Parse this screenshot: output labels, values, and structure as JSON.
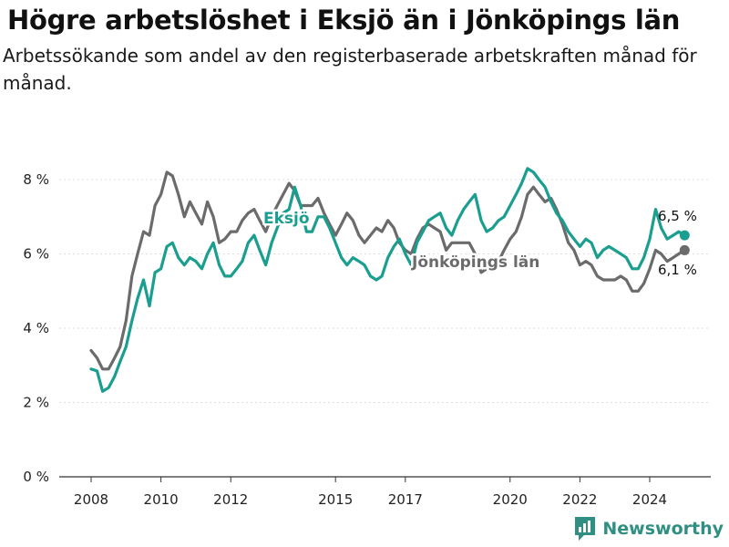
{
  "title": "Högre arbetslöshet i Eksjö än i Jönköpings län",
  "subtitle": "Arbetssökande som andel av den registerbaserade arbetskraften månad för månad.",
  "brand": "Newsworthy",
  "colors": {
    "eksjo": "#1a9e8f",
    "jonkoping": "#6b6b6b",
    "grid": "#dddddd",
    "axis": "#333333",
    "brand": "#2f8f83"
  },
  "chart_data": {
    "type": "line",
    "title": "Högre arbetslöshet i Eksjö än i Jönköpings län",
    "subtitle": "Arbetssökande som andel av den registerbaserade arbetskraften månad för månad.",
    "xlabel": "",
    "ylabel": "",
    "ylim": [
      0,
      9
    ],
    "xlim": [
      2007.6,
      2025.8
    ],
    "yticks": [
      0,
      2,
      4,
      6,
      8
    ],
    "ytick_labels": [
      "0 %",
      "2 %",
      "4 %",
      "6 %",
      "8 %"
    ],
    "xticks": [
      2008,
      2010,
      2012,
      2015,
      2017,
      2020,
      2022,
      2024
    ],
    "xtick_labels": [
      "2008",
      "2010",
      "2012",
      "2015",
      "2017",
      "2020",
      "2022",
      "2024"
    ],
    "grid": true,
    "series": [
      {
        "name": "Eksjö",
        "color": "#1a9e8f",
        "end_label": "6,5 %",
        "points": [
          [
            2008.0,
            2.9
          ],
          [
            2008.17,
            2.85
          ],
          [
            2008.33,
            2.3
          ],
          [
            2008.5,
            2.4
          ],
          [
            2008.67,
            2.7
          ],
          [
            2008.83,
            3.1
          ],
          [
            2009.0,
            3.5
          ],
          [
            2009.17,
            4.2
          ],
          [
            2009.33,
            4.8
          ],
          [
            2009.5,
            5.3
          ],
          [
            2009.67,
            4.6
          ],
          [
            2009.83,
            5.5
          ],
          [
            2010.0,
            5.6
          ],
          [
            2010.17,
            6.2
          ],
          [
            2010.33,
            6.3
          ],
          [
            2010.5,
            5.9
          ],
          [
            2010.67,
            5.7
          ],
          [
            2010.83,
            5.9
          ],
          [
            2011.0,
            5.8
          ],
          [
            2011.17,
            5.6
          ],
          [
            2011.33,
            6.0
          ],
          [
            2011.5,
            6.3
          ],
          [
            2011.67,
            5.7
          ],
          [
            2011.83,
            5.4
          ],
          [
            2012.0,
            5.4
          ],
          [
            2012.17,
            5.6
          ],
          [
            2012.33,
            5.8
          ],
          [
            2012.5,
            6.3
          ],
          [
            2012.67,
            6.5
          ],
          [
            2012.83,
            6.1
          ],
          [
            2013.0,
            5.7
          ],
          [
            2013.17,
            6.3
          ],
          [
            2013.33,
            6.7
          ],
          [
            2013.5,
            7.1
          ],
          [
            2013.67,
            7.2
          ],
          [
            2013.83,
            7.8
          ],
          [
            2014.0,
            7.3
          ],
          [
            2014.17,
            6.6
          ],
          [
            2014.33,
            6.6
          ],
          [
            2014.5,
            7.0
          ],
          [
            2014.67,
            7.0
          ],
          [
            2014.83,
            6.7
          ],
          [
            2015.0,
            6.3
          ],
          [
            2015.17,
            5.9
          ],
          [
            2015.33,
            5.7
          ],
          [
            2015.5,
            5.9
          ],
          [
            2015.67,
            5.8
          ],
          [
            2015.83,
            5.7
          ],
          [
            2016.0,
            5.4
          ],
          [
            2016.17,
            5.3
          ],
          [
            2016.33,
            5.4
          ],
          [
            2016.5,
            5.9
          ],
          [
            2016.67,
            6.2
          ],
          [
            2016.83,
            6.4
          ],
          [
            2017.0,
            6.0
          ],
          [
            2017.17,
            5.7
          ],
          [
            2017.33,
            6.3
          ],
          [
            2017.5,
            6.6
          ],
          [
            2017.67,
            6.9
          ],
          [
            2017.83,
            7.0
          ],
          [
            2018.0,
            7.1
          ],
          [
            2018.17,
            6.7
          ],
          [
            2018.33,
            6.5
          ],
          [
            2018.5,
            6.9
          ],
          [
            2018.67,
            7.2
          ],
          [
            2018.83,
            7.4
          ],
          [
            2019.0,
            7.6
          ],
          [
            2019.17,
            6.9
          ],
          [
            2019.33,
            6.6
          ],
          [
            2019.5,
            6.7
          ],
          [
            2019.67,
            6.9
          ],
          [
            2019.83,
            7.0
          ],
          [
            2020.0,
            7.3
          ],
          [
            2020.17,
            7.6
          ],
          [
            2020.33,
            7.9
          ],
          [
            2020.5,
            8.3
          ],
          [
            2020.67,
            8.2
          ],
          [
            2020.83,
            8.0
          ],
          [
            2021.0,
            7.8
          ],
          [
            2021.17,
            7.4
          ],
          [
            2021.33,
            7.1
          ],
          [
            2021.5,
            6.9
          ],
          [
            2021.67,
            6.6
          ],
          [
            2021.83,
            6.4
          ],
          [
            2022.0,
            6.2
          ],
          [
            2022.17,
            6.4
          ],
          [
            2022.33,
            6.3
          ],
          [
            2022.5,
            5.9
          ],
          [
            2022.67,
            6.1
          ],
          [
            2022.83,
            6.2
          ],
          [
            2023.0,
            6.1
          ],
          [
            2023.17,
            6.0
          ],
          [
            2023.33,
            5.9
          ],
          [
            2023.5,
            5.6
          ],
          [
            2023.67,
            5.6
          ],
          [
            2023.83,
            5.9
          ],
          [
            2024.0,
            6.4
          ],
          [
            2024.17,
            7.2
          ],
          [
            2024.33,
            6.7
          ],
          [
            2024.5,
            6.4
          ],
          [
            2024.67,
            6.5
          ],
          [
            2024.83,
            6.6
          ],
          [
            2025.0,
            6.5
          ]
        ]
      },
      {
        "name": "Jönköpings län",
        "color": "#6b6b6b",
        "end_label": "6,1 %",
        "points": [
          [
            2008.0,
            3.4
          ],
          [
            2008.17,
            3.2
          ],
          [
            2008.33,
            2.9
          ],
          [
            2008.5,
            2.9
          ],
          [
            2008.67,
            3.2
          ],
          [
            2008.83,
            3.5
          ],
          [
            2009.0,
            4.2
          ],
          [
            2009.17,
            5.4
          ],
          [
            2009.33,
            6.0
          ],
          [
            2009.5,
            6.6
          ],
          [
            2009.67,
            6.5
          ],
          [
            2009.83,
            7.3
          ],
          [
            2010.0,
            7.6
          ],
          [
            2010.17,
            8.2
          ],
          [
            2010.33,
            8.1
          ],
          [
            2010.5,
            7.6
          ],
          [
            2010.67,
            7.0
          ],
          [
            2010.83,
            7.4
          ],
          [
            2011.0,
            7.1
          ],
          [
            2011.17,
            6.8
          ],
          [
            2011.33,
            7.4
          ],
          [
            2011.5,
            7.0
          ],
          [
            2011.67,
            6.3
          ],
          [
            2011.83,
            6.4
          ],
          [
            2012.0,
            6.6
          ],
          [
            2012.17,
            6.6
          ],
          [
            2012.33,
            6.9
          ],
          [
            2012.5,
            7.1
          ],
          [
            2012.67,
            7.2
          ],
          [
            2012.83,
            6.9
          ],
          [
            2013.0,
            6.6
          ],
          [
            2013.17,
            7.0
          ],
          [
            2013.33,
            7.3
          ],
          [
            2013.5,
            7.6
          ],
          [
            2013.67,
            7.9
          ],
          [
            2013.83,
            7.7
          ],
          [
            2014.0,
            7.3
          ],
          [
            2014.17,
            7.3
          ],
          [
            2014.33,
            7.3
          ],
          [
            2014.5,
            7.5
          ],
          [
            2014.67,
            7.1
          ],
          [
            2014.83,
            6.8
          ],
          [
            2015.0,
            6.5
          ],
          [
            2015.17,
            6.8
          ],
          [
            2015.33,
            7.1
          ],
          [
            2015.5,
            6.9
          ],
          [
            2015.67,
            6.5
          ],
          [
            2015.83,
            6.3
          ],
          [
            2016.0,
            6.5
          ],
          [
            2016.17,
            6.7
          ],
          [
            2016.33,
            6.6
          ],
          [
            2016.5,
            6.9
          ],
          [
            2016.67,
            6.7
          ],
          [
            2016.83,
            6.3
          ],
          [
            2017.0,
            6.1
          ],
          [
            2017.17,
            6.0
          ],
          [
            2017.33,
            6.4
          ],
          [
            2017.5,
            6.7
          ],
          [
            2017.67,
            6.8
          ],
          [
            2017.83,
            6.7
          ],
          [
            2018.0,
            6.6
          ],
          [
            2018.17,
            6.1
          ],
          [
            2018.33,
            6.3
          ],
          [
            2018.5,
            6.3
          ],
          [
            2018.67,
            6.3
          ],
          [
            2018.83,
            6.3
          ],
          [
            2019.0,
            6.0
          ],
          [
            2019.17,
            5.5
          ],
          [
            2019.33,
            5.6
          ],
          [
            2019.5,
            5.7
          ],
          [
            2019.67,
            5.8
          ],
          [
            2019.83,
            6.1
          ],
          [
            2020.0,
            6.4
          ],
          [
            2020.17,
            6.6
          ],
          [
            2020.33,
            7.0
          ],
          [
            2020.5,
            7.6
          ],
          [
            2020.67,
            7.8
          ],
          [
            2020.83,
            7.6
          ],
          [
            2021.0,
            7.4
          ],
          [
            2021.17,
            7.5
          ],
          [
            2021.33,
            7.2
          ],
          [
            2021.5,
            6.8
          ],
          [
            2021.67,
            6.3
          ],
          [
            2021.83,
            6.1
          ],
          [
            2022.0,
            5.7
          ],
          [
            2022.17,
            5.8
          ],
          [
            2022.33,
            5.7
          ],
          [
            2022.5,
            5.4
          ],
          [
            2022.67,
            5.3
          ],
          [
            2022.83,
            5.3
          ],
          [
            2023.0,
            5.3
          ],
          [
            2023.17,
            5.4
          ],
          [
            2023.33,
            5.3
          ],
          [
            2023.5,
            5.0
          ],
          [
            2023.67,
            5.0
          ],
          [
            2023.83,
            5.2
          ],
          [
            2024.0,
            5.6
          ],
          [
            2024.17,
            6.1
          ],
          [
            2024.33,
            6.0
          ],
          [
            2024.5,
            5.8
          ],
          [
            2024.67,
            5.9
          ],
          [
            2024.83,
            6.0
          ],
          [
            2025.0,
            6.1
          ]
        ]
      }
    ]
  }
}
